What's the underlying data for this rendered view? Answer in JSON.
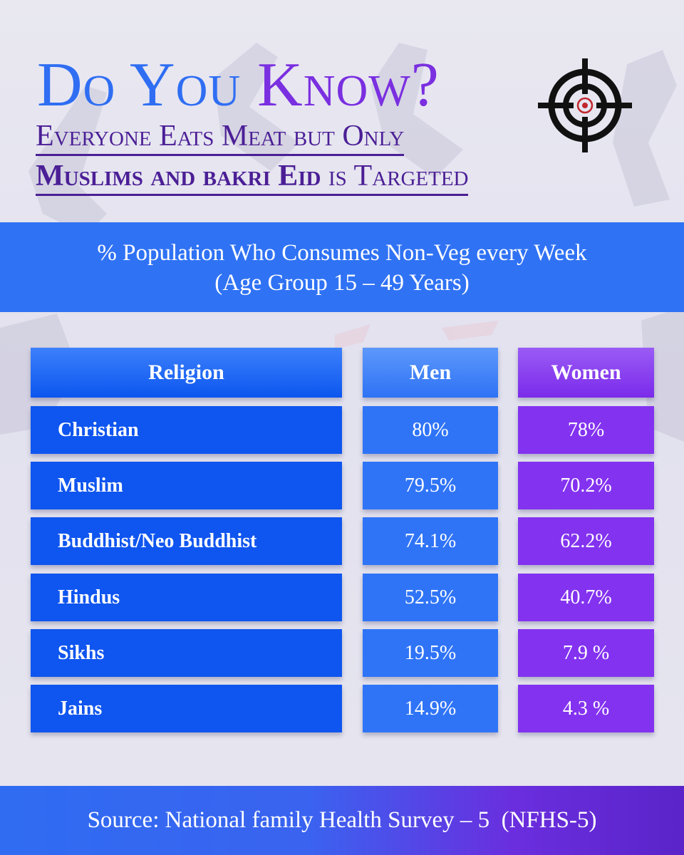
{
  "headline": {
    "part1": "Do You ",
    "part2": "Know?",
    "sub_line1": "Everyone Eats Meat but Only",
    "sub_line2_bold": "Muslims and bakri Eid",
    "sub_line2_rest": " is Targeted"
  },
  "icons": {
    "target": "target-crosshair-icon"
  },
  "colors": {
    "blue": "#0f55ef",
    "light_blue": "#2f74f7",
    "purple": "#8332f0",
    "dark_purple": "#4b1f96"
  },
  "chart_data": {
    "type": "table",
    "title_line1": "% Population Who Consumes Non-Veg every Week",
    "title_line2": "(Age Group 15 – 49 Years)",
    "columns": [
      "Religion",
      "Men",
      "Women"
    ],
    "rows": [
      {
        "religion": "Christian",
        "men": "80%",
        "women": "78%"
      },
      {
        "religion": "Muslim",
        "men": "79.5%",
        "women": "70.2%"
      },
      {
        "religion": "Buddhist/Neo Buddhist",
        "men": "74.1%",
        "women": "62.2%"
      },
      {
        "religion": "Hindus",
        "men": "52.5%",
        "women": "40.7%"
      },
      {
        "religion": "Sikhs",
        "men": "19.5%",
        "women": "7.9 %"
      },
      {
        "religion": "Jains",
        "men": "14.9%",
        "women": "4.3 %"
      }
    ],
    "series": [
      {
        "name": "Men",
        "values": [
          80,
          79.5,
          74.1,
          52.5,
          19.5,
          14.9
        ]
      },
      {
        "name": "Women",
        "values": [
          78,
          70.2,
          62.2,
          40.7,
          7.9,
          4.3
        ]
      }
    ]
  },
  "footer": {
    "source": "Source: National family Health Survey – 5  (NFHS-5)"
  }
}
